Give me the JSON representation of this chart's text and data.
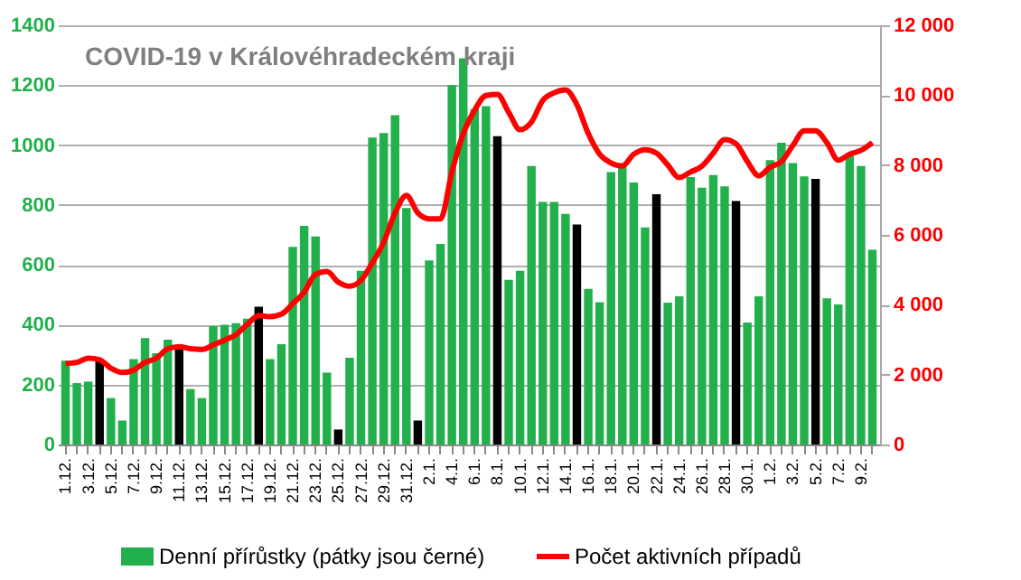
{
  "chart_data": {
    "type": "bar",
    "title": "COVID-19 v Královéhradeckém kraji",
    "categories": [
      "1.12.",
      null,
      "3.12.",
      null,
      "5.12.",
      null,
      "7.12.",
      null,
      "9.12.",
      null,
      "11.12.",
      null,
      "13.12.",
      null,
      "15.12.",
      null,
      "17.12.",
      null,
      "19.12.",
      null,
      "21.12.",
      null,
      "23.12.",
      null,
      "25.12.",
      null,
      "27.12.",
      null,
      "29.12.",
      null,
      "31.12.",
      null,
      "2.1.",
      null,
      "4.1.",
      null,
      "6.1.",
      null,
      "8.1.",
      null,
      "10.1.",
      null,
      "12.1.",
      null,
      "14.1.",
      null,
      "16.1.",
      null,
      "18.1.",
      null,
      "20.1.",
      null,
      "22.1.",
      null,
      "24.1.",
      null,
      "26.1.",
      null,
      "28.1.",
      null,
      "30.1.",
      null,
      "1.2.",
      null,
      "3.2.",
      null,
      "5.2.",
      null,
      "7.2.",
      null,
      "9.2.",
      null
    ],
    "series": [
      {
        "name": "Denní přírůstky (pátky jsou černé)",
        "color": "#21b04b",
        "values": [
          280,
          205,
          210,
          280,
          155,
          80,
          285,
          355,
          305,
          350,
          330,
          185,
          155,
          395,
          400,
          405,
          420,
          460,
          285,
          335,
          660,
          730,
          695,
          240,
          50,
          290,
          580,
          1025,
          1040,
          1100,
          790,
          80,
          615,
          670,
          1200,
          1290,
          1120,
          1130,
          1030,
          550,
          580,
          930,
          810,
          810,
          770,
          735,
          520,
          475,
          910,
          930,
          875,
          725,
          836,
          474,
          495,
          893,
          858,
          900,
          862,
          813,
          407,
          495,
          950,
          1008,
          940,
          895,
          887,
          488,
          468,
          963,
          930,
          650
        ],
        "colors": [
          "#21b04b",
          "#21b04b",
          "#21b04b",
          "#000000",
          "#21b04b",
          "#21b04b",
          "#21b04b",
          "#21b04b",
          "#21b04b",
          "#21b04b",
          "#000000",
          "#21b04b",
          "#21b04b",
          "#21b04b",
          "#21b04b",
          "#21b04b",
          "#21b04b",
          "#000000",
          "#21b04b",
          "#21b04b",
          "#21b04b",
          "#21b04b",
          "#21b04b",
          "#21b04b",
          "#000000",
          "#21b04b",
          "#21b04b",
          "#21b04b",
          "#21b04b",
          "#21b04b",
          "#21b04b",
          "#000000",
          "#21b04b",
          "#21b04b",
          "#21b04b",
          "#21b04b",
          "#21b04b",
          "#21b04b",
          "#000000",
          "#21b04b",
          "#21b04b",
          "#21b04b",
          "#21b04b",
          "#21b04b",
          "#21b04b",
          "#000000",
          "#21b04b",
          "#21b04b",
          "#21b04b",
          "#21b04b",
          "#21b04b",
          "#21b04b",
          "#000000",
          "#21b04b",
          "#21b04b",
          "#21b04b",
          "#21b04b",
          "#21b04b",
          "#21b04b",
          "#000000",
          "#21b04b",
          "#21b04b",
          "#21b04b",
          "#21b04b",
          "#21b04b",
          "#21b04b",
          "#000000",
          "#21b04b",
          "#21b04b",
          "#21b04b",
          "#21b04b",
          "#21b04b"
        ]
      },
      {
        "name": "Počet aktivních případů",
        "type": "line",
        "axis": "y2",
        "color": "#ff0000",
        "values": [
          2320,
          2350,
          2470,
          2430,
          2180,
          2060,
          2130,
          2350,
          2470,
          2740,
          2800,
          2740,
          2720,
          2850,
          2990,
          3140,
          3440,
          3690,
          3660,
          3730,
          4030,
          4360,
          4870,
          4950,
          4650,
          4530,
          4700,
          5200,
          5790,
          6630,
          7130,
          6630,
          6460,
          6460,
          7800,
          8900,
          9570,
          9990,
          10020,
          9510,
          9010,
          9230,
          9850,
          10070,
          10150,
          9730,
          8900,
          8310,
          8060,
          7970,
          8310,
          8440,
          8340,
          8000,
          7640,
          7800,
          7970,
          8340,
          8730,
          8610,
          8100,
          7690,
          7940,
          8100,
          8560,
          8980,
          8980,
          8640,
          8140,
          8310,
          8420,
          8640
        ]
      }
    ],
    "ylim": [
      0,
      1400
    ],
    "yticks": [
      0,
      200,
      400,
      600,
      800,
      1000,
      1200,
      1400
    ],
    "y2lim": [
      0,
      12000
    ],
    "y2ticks": [
      0,
      {
        "value": 2000,
        "label": "2 000"
      },
      {
        "value": 4000,
        "label": "4 000"
      },
      {
        "value": 6000,
        "label": "6 000"
      },
      {
        "value": 8000,
        "label": "8 000"
      },
      {
        "value": 10000,
        "label": "10 000"
      },
      {
        "value": 12000,
        "label": "12 000"
      }
    ],
    "grid": "y",
    "legend": "bottom"
  }
}
